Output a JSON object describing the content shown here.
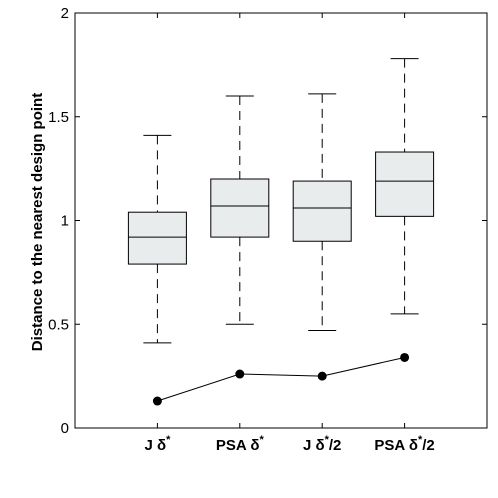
{
  "chart_data": {
    "type": "boxplot",
    "ylabel": "Distance to the nearest design point",
    "ylim": [
      0,
      2
    ],
    "yticks": [
      0,
      0.5,
      1,
      1.5,
      2
    ],
    "ytick_labels": [
      "0",
      "0.5",
      "1",
      "1.5",
      "2"
    ],
    "categories": [
      {
        "main": "J δ",
        "sup": "*",
        "tail": ""
      },
      {
        "main": "PSA δ",
        "sup": "*",
        "tail": ""
      },
      {
        "main": "J δ",
        "sup": "*",
        "tail": "/2"
      },
      {
        "main": "PSA δ",
        "sup": "*",
        "tail": "/2"
      }
    ],
    "boxes": [
      {
        "whisker_low": 0.41,
        "q1": 0.79,
        "median": 0.92,
        "q3": 1.04,
        "whisker_high": 1.41
      },
      {
        "whisker_low": 0.5,
        "q1": 0.92,
        "median": 1.07,
        "q3": 1.2,
        "whisker_high": 1.6
      },
      {
        "whisker_low": 0.47,
        "q1": 0.9,
        "median": 1.06,
        "q3": 1.19,
        "whisker_high": 1.61
      },
      {
        "whisker_low": 0.55,
        "q1": 1.02,
        "median": 1.19,
        "q3": 1.33,
        "whisker_high": 1.78
      }
    ],
    "line_series": {
      "values": [
        0.13,
        0.26,
        0.25,
        0.34
      ]
    },
    "colors": {
      "box_fill": "#e8ecec",
      "stroke": "#000000"
    }
  }
}
